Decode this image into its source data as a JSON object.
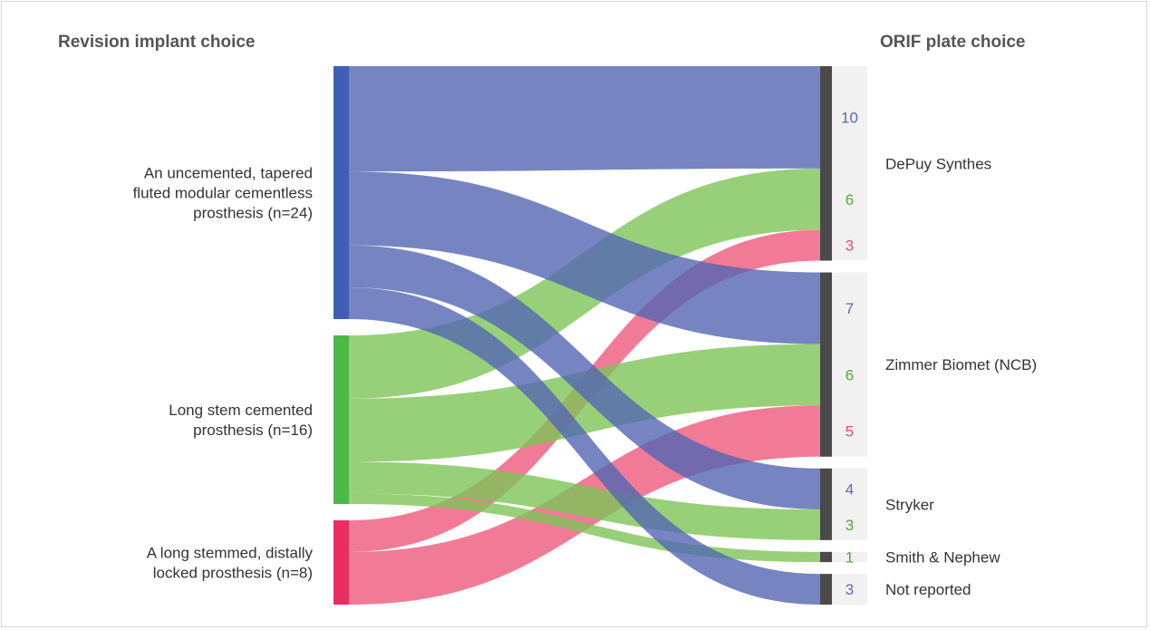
{
  "chart_data": {
    "type": "sankey",
    "left_heading": "Revision implant choice",
    "right_heading": "ORIF plate choice",
    "sources": [
      {
        "id": "unc",
        "label_lines": [
          "An uncemented, tapered",
          "fluted modular cementless",
          "prosthesis (n=24)"
        ],
        "value": 24,
        "color": "#3f5fb4",
        "link_color": "#5466b3"
      },
      {
        "id": "cem",
        "label_lines": [
          "Long stem cemented",
          "prosthesis (n=16)"
        ],
        "value": 16,
        "color": "#4cb848",
        "link_color": "#7dc458"
      },
      {
        "id": "lock",
        "label_lines": [
          "A long stemmed, distally",
          "locked prosthesis (n=8)"
        ],
        "value": 8,
        "color": "#ea2d62",
        "link_color": "#ee5a7c"
      }
    ],
    "targets": [
      {
        "id": "depuy",
        "label": "DePuy Synthes",
        "value": 19
      },
      {
        "id": "zimmer",
        "label": "Zimmer Biomet (NCB)",
        "value": 18
      },
      {
        "id": "stryker",
        "label": "Stryker",
        "value": 7
      },
      {
        "id": "smith",
        "label": "Smith & Nephew",
        "value": 1
      },
      {
        "id": "nr",
        "label": "Not reported",
        "value": 3
      }
    ],
    "links": [
      {
        "source": "unc",
        "target": "depuy",
        "value": 10
      },
      {
        "source": "cem",
        "target": "depuy",
        "value": 6
      },
      {
        "source": "lock",
        "target": "depuy",
        "value": 3
      },
      {
        "source": "unc",
        "target": "zimmer",
        "value": 7
      },
      {
        "source": "cem",
        "target": "zimmer",
        "value": 6
      },
      {
        "source": "lock",
        "target": "zimmer",
        "value": 5
      },
      {
        "source": "unc",
        "target": "stryker",
        "value": 4
      },
      {
        "source": "cem",
        "target": "stryker",
        "value": 3
      },
      {
        "source": "cem",
        "target": "smith",
        "value": 1
      },
      {
        "source": "unc",
        "target": "nr",
        "value": 3
      }
    ],
    "source_order_of_links": {
      "unc": [
        "depuy",
        "zimmer",
        "stryker",
        "nr"
      ],
      "cem": [
        "depuy",
        "zimmer",
        "stryker",
        "smith"
      ],
      "lock": [
        "depuy",
        "zimmer"
      ]
    },
    "value_label_colors": {
      "unc": "#5b6bb8",
      "cem": "#58a83c",
      "lock": "#d8506e"
    },
    "target_bar_color": "#4a4a4a",
    "target_panel_color": "#f1f1f1",
    "grid": false,
    "legend": "none"
  }
}
